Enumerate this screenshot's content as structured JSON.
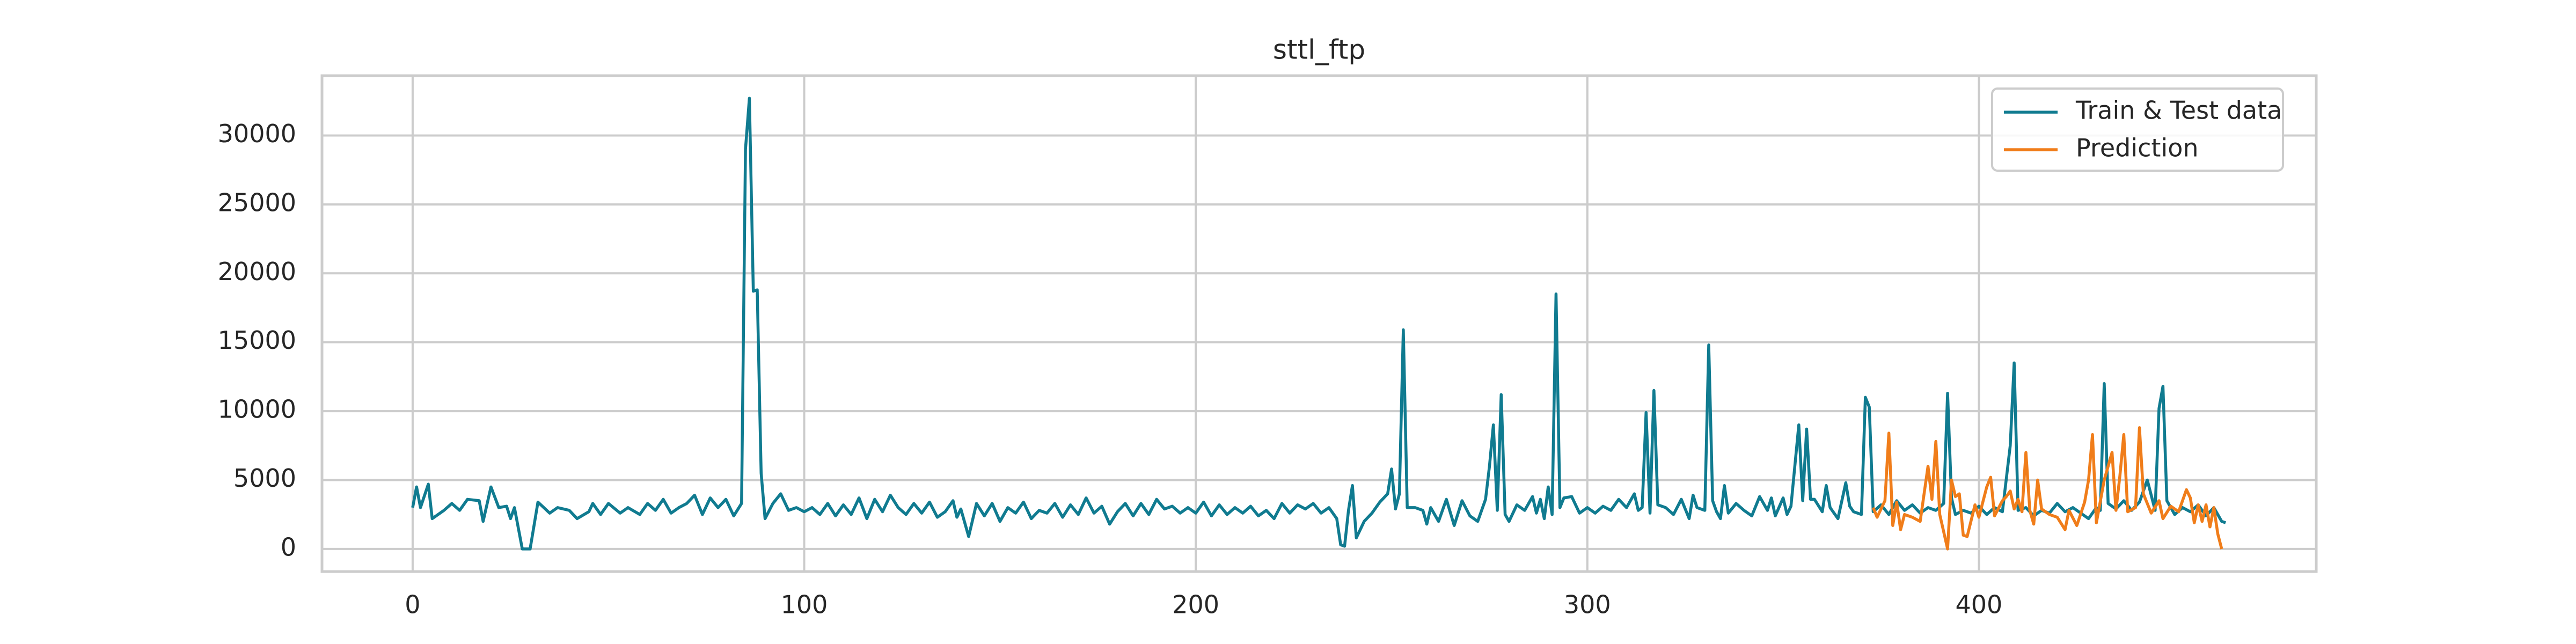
{
  "chart_data": {
    "type": "line",
    "title": "sttl_ftp",
    "xlim": [
      -23.15,
      486.15
    ],
    "xticks": [
      0,
      100,
      200,
      300,
      400
    ],
    "ylim": [
      -1640,
      34340
    ],
    "yticks": [
      0,
      5000,
      10000,
      15000,
      20000,
      25000,
      30000
    ],
    "grid": true,
    "legend": "upper right",
    "series": [
      {
        "name": "Train & Test data",
        "color": "#107b90",
        "x": [
          0,
          1,
          2,
          4,
          5,
          8,
          10,
          12,
          14,
          17,
          18,
          20,
          22,
          24,
          25,
          26,
          28,
          30,
          32,
          35,
          37,
          40,
          42,
          45,
          46,
          48,
          50,
          53,
          55,
          58,
          60,
          62,
          64,
          66,
          68,
          70,
          72,
          74,
          76,
          78,
          80,
          82,
          84,
          85,
          86,
          87,
          88,
          89,
          90,
          92,
          94,
          96,
          98,
          100,
          102,
          104,
          106,
          108,
          110,
          112,
          114,
          116,
          118,
          120,
          122,
          124,
          126,
          128,
          130,
          132,
          134,
          136,
          138,
          139,
          140,
          142,
          144,
          146,
          148,
          150,
          152,
          154,
          156,
          158,
          160,
          162,
          164,
          166,
          168,
          170,
          172,
          174,
          176,
          178,
          180,
          182,
          184,
          186,
          188,
          190,
          192,
          194,
          196,
          198,
          200,
          202,
          204,
          206,
          208,
          210,
          212,
          214,
          216,
          218,
          220,
          222,
          224,
          226,
          228,
          230,
          232,
          234,
          236,
          237,
          238,
          239,
          240,
          241,
          243,
          245,
          247,
          249,
          250,
          251,
          252,
          253,
          254,
          256,
          258,
          259,
          260,
          262,
          264,
          266,
          268,
          270,
          272,
          274,
          275,
          276,
          277,
          278,
          279,
          280,
          282,
          284,
          286,
          287,
          288,
          289,
          290,
          291,
          292,
          293,
          294,
          296,
          298,
          300,
          302,
          304,
          306,
          308,
          310,
          312,
          313,
          314,
          315,
          316,
          317,
          318,
          320,
          322,
          324,
          326,
          327,
          328,
          330,
          331,
          332,
          333,
          334,
          335,
          336,
          338,
          340,
          342,
          344,
          346,
          347,
          348,
          350,
          351,
          352,
          354,
          355,
          356,
          357,
          358,
          360,
          361,
          362,
          364,
          366,
          367,
          368,
          370,
          371,
          372,
          373,
          375,
          377,
          379,
          381,
          383,
          385,
          387,
          389,
          391,
          392,
          393,
          394,
          396,
          398,
          400,
          402,
          404,
          406,
          408,
          409,
          410,
          412,
          414,
          416,
          418,
          420,
          422,
          424,
          426,
          428,
          430,
          431,
          432,
          433,
          435,
          437,
          439,
          441,
          443,
          445,
          446,
          447,
          448,
          450,
          452,
          454,
          456,
          458,
          460,
          462,
          463
        ],
        "values": [
          3000,
          4500,
          3000,
          4700,
          2200,
          2800,
          3300,
          2800,
          3600,
          3500,
          2000,
          4500,
          3000,
          3100,
          2200,
          3000,
          0,
          0,
          3400,
          2600,
          3000,
          2800,
          2200,
          2700,
          3300,
          2500,
          3300,
          2600,
          3000,
          2500,
          3300,
          2800,
          3600,
          2600,
          3000,
          3300,
          3900,
          2500,
          3700,
          3000,
          3600,
          2400,
          3300,
          29000,
          32700,
          18700,
          18800,
          5500,
          2200,
          3300,
          4000,
          2800,
          3000,
          2700,
          3000,
          2500,
          3300,
          2400,
          3200,
          2500,
          3700,
          2200,
          3600,
          2700,
          3900,
          3000,
          2500,
          3300,
          2600,
          3400,
          2300,
          2700,
          3500,
          2300,
          2900,
          900,
          3300,
          2400,
          3300,
          2000,
          3000,
          2600,
          3400,
          2200,
          2800,
          2600,
          3300,
          2300,
          3200,
          2500,
          3700,
          2600,
          3100,
          1800,
          2700,
          3300,
          2400,
          3300,
          2500,
          3600,
          2900,
          3100,
          2600,
          3000,
          2600,
          3400,
          2400,
          3200,
          2500,
          3000,
          2600,
          3100,
          2400,
          2800,
          2200,
          3300,
          2600,
          3200,
          2900,
          3300,
          2600,
          3000,
          2200,
          300,
          200,
          2800,
          4600,
          800,
          2000,
          2600,
          3400,
          4000,
          5800,
          2900,
          4000,
          15900,
          3000,
          3000,
          2800,
          1800,
          3000,
          2000,
          3600,
          1700,
          3500,
          2400,
          2000,
          3600,
          6000,
          9000,
          2800,
          11200,
          2500,
          2000,
          3200,
          2800,
          3800,
          2600,
          3600,
          2200,
          4500,
          2500,
          18500,
          3000,
          3700,
          3800,
          2600,
          3000,
          2600,
          3100,
          2800,
          3600,
          3000,
          4000,
          2800,
          3000,
          9900,
          2600,
          11500,
          3200,
          3000,
          2500,
          3600,
          2200,
          3900,
          3000,
          2800,
          14800,
          3500,
          2700,
          2200,
          4600,
          2600,
          3300,
          2800,
          2400,
          3800,
          2800,
          3700,
          2400,
          3700,
          2500,
          3100,
          9000,
          3500,
          8700,
          3600,
          3600,
          2700,
          4600,
          3000,
          2200,
          4800,
          3100,
          2700,
          2500,
          11000,
          10300,
          2700,
          3200,
          2500,
          3500,
          2800,
          3200,
          2600,
          3000,
          2800,
          3300,
          11300,
          3700,
          2500,
          2800,
          2600,
          3100,
          2500,
          3000,
          2700,
          7500,
          13500,
          2800,
          3000,
          2400,
          2800,
          2600,
          3300,
          2700,
          3000,
          2600,
          2200,
          3000,
          2800,
          12000,
          3300,
          2900,
          3500,
          2800,
          3400,
          5000,
          2800,
          10200,
          11800,
          3500,
          2500,
          3000,
          2700,
          3200,
          2400,
          3000,
          2000,
          1900
        ]
      },
      {
        "name": "Prediction",
        "color": "#f07d1a",
        "x": [
          373,
          374,
          376,
          377,
          378,
          379,
          380,
          381,
          383,
          385,
          387,
          388,
          389,
          390,
          392,
          393,
          394,
          395,
          396,
          397,
          399,
          400,
          402,
          403,
          404,
          406,
          407,
          408,
          409,
          410,
          411,
          412,
          413,
          414,
          415,
          416,
          418,
          420,
          422,
          423,
          425,
          427,
          428,
          429,
          430,
          432,
          434,
          435,
          436,
          437,
          438,
          440,
          441,
          442,
          444,
          446,
          447,
          449,
          451,
          453,
          454,
          455,
          456,
          457,
          458,
          459,
          460,
          461,
          462
        ],
        "values": [
          3000,
          2300,
          3500,
          8400,
          1700,
          3400,
          1400,
          2500,
          2300,
          2000,
          6000,
          3600,
          7800,
          2500,
          0,
          5000,
          3800,
          4000,
          1000,
          900,
          3200,
          2300,
          4500,
          5200,
          2400,
          3500,
          3800,
          4200,
          2900,
          3600,
          2700,
          7000,
          2800,
          1800,
          5000,
          2900,
          2500,
          2300,
          1400,
          2800,
          1700,
          3400,
          5000,
          8300,
          1900,
          5000,
          7000,
          2800,
          5300,
          8300,
          2700,
          3000,
          8800,
          4000,
          2600,
          3500,
          2200,
          3100,
          2700,
          4300,
          3700,
          1900,
          3200,
          2000,
          3200,
          1600,
          3000,
          1100,
          0
        ]
      }
    ]
  }
}
